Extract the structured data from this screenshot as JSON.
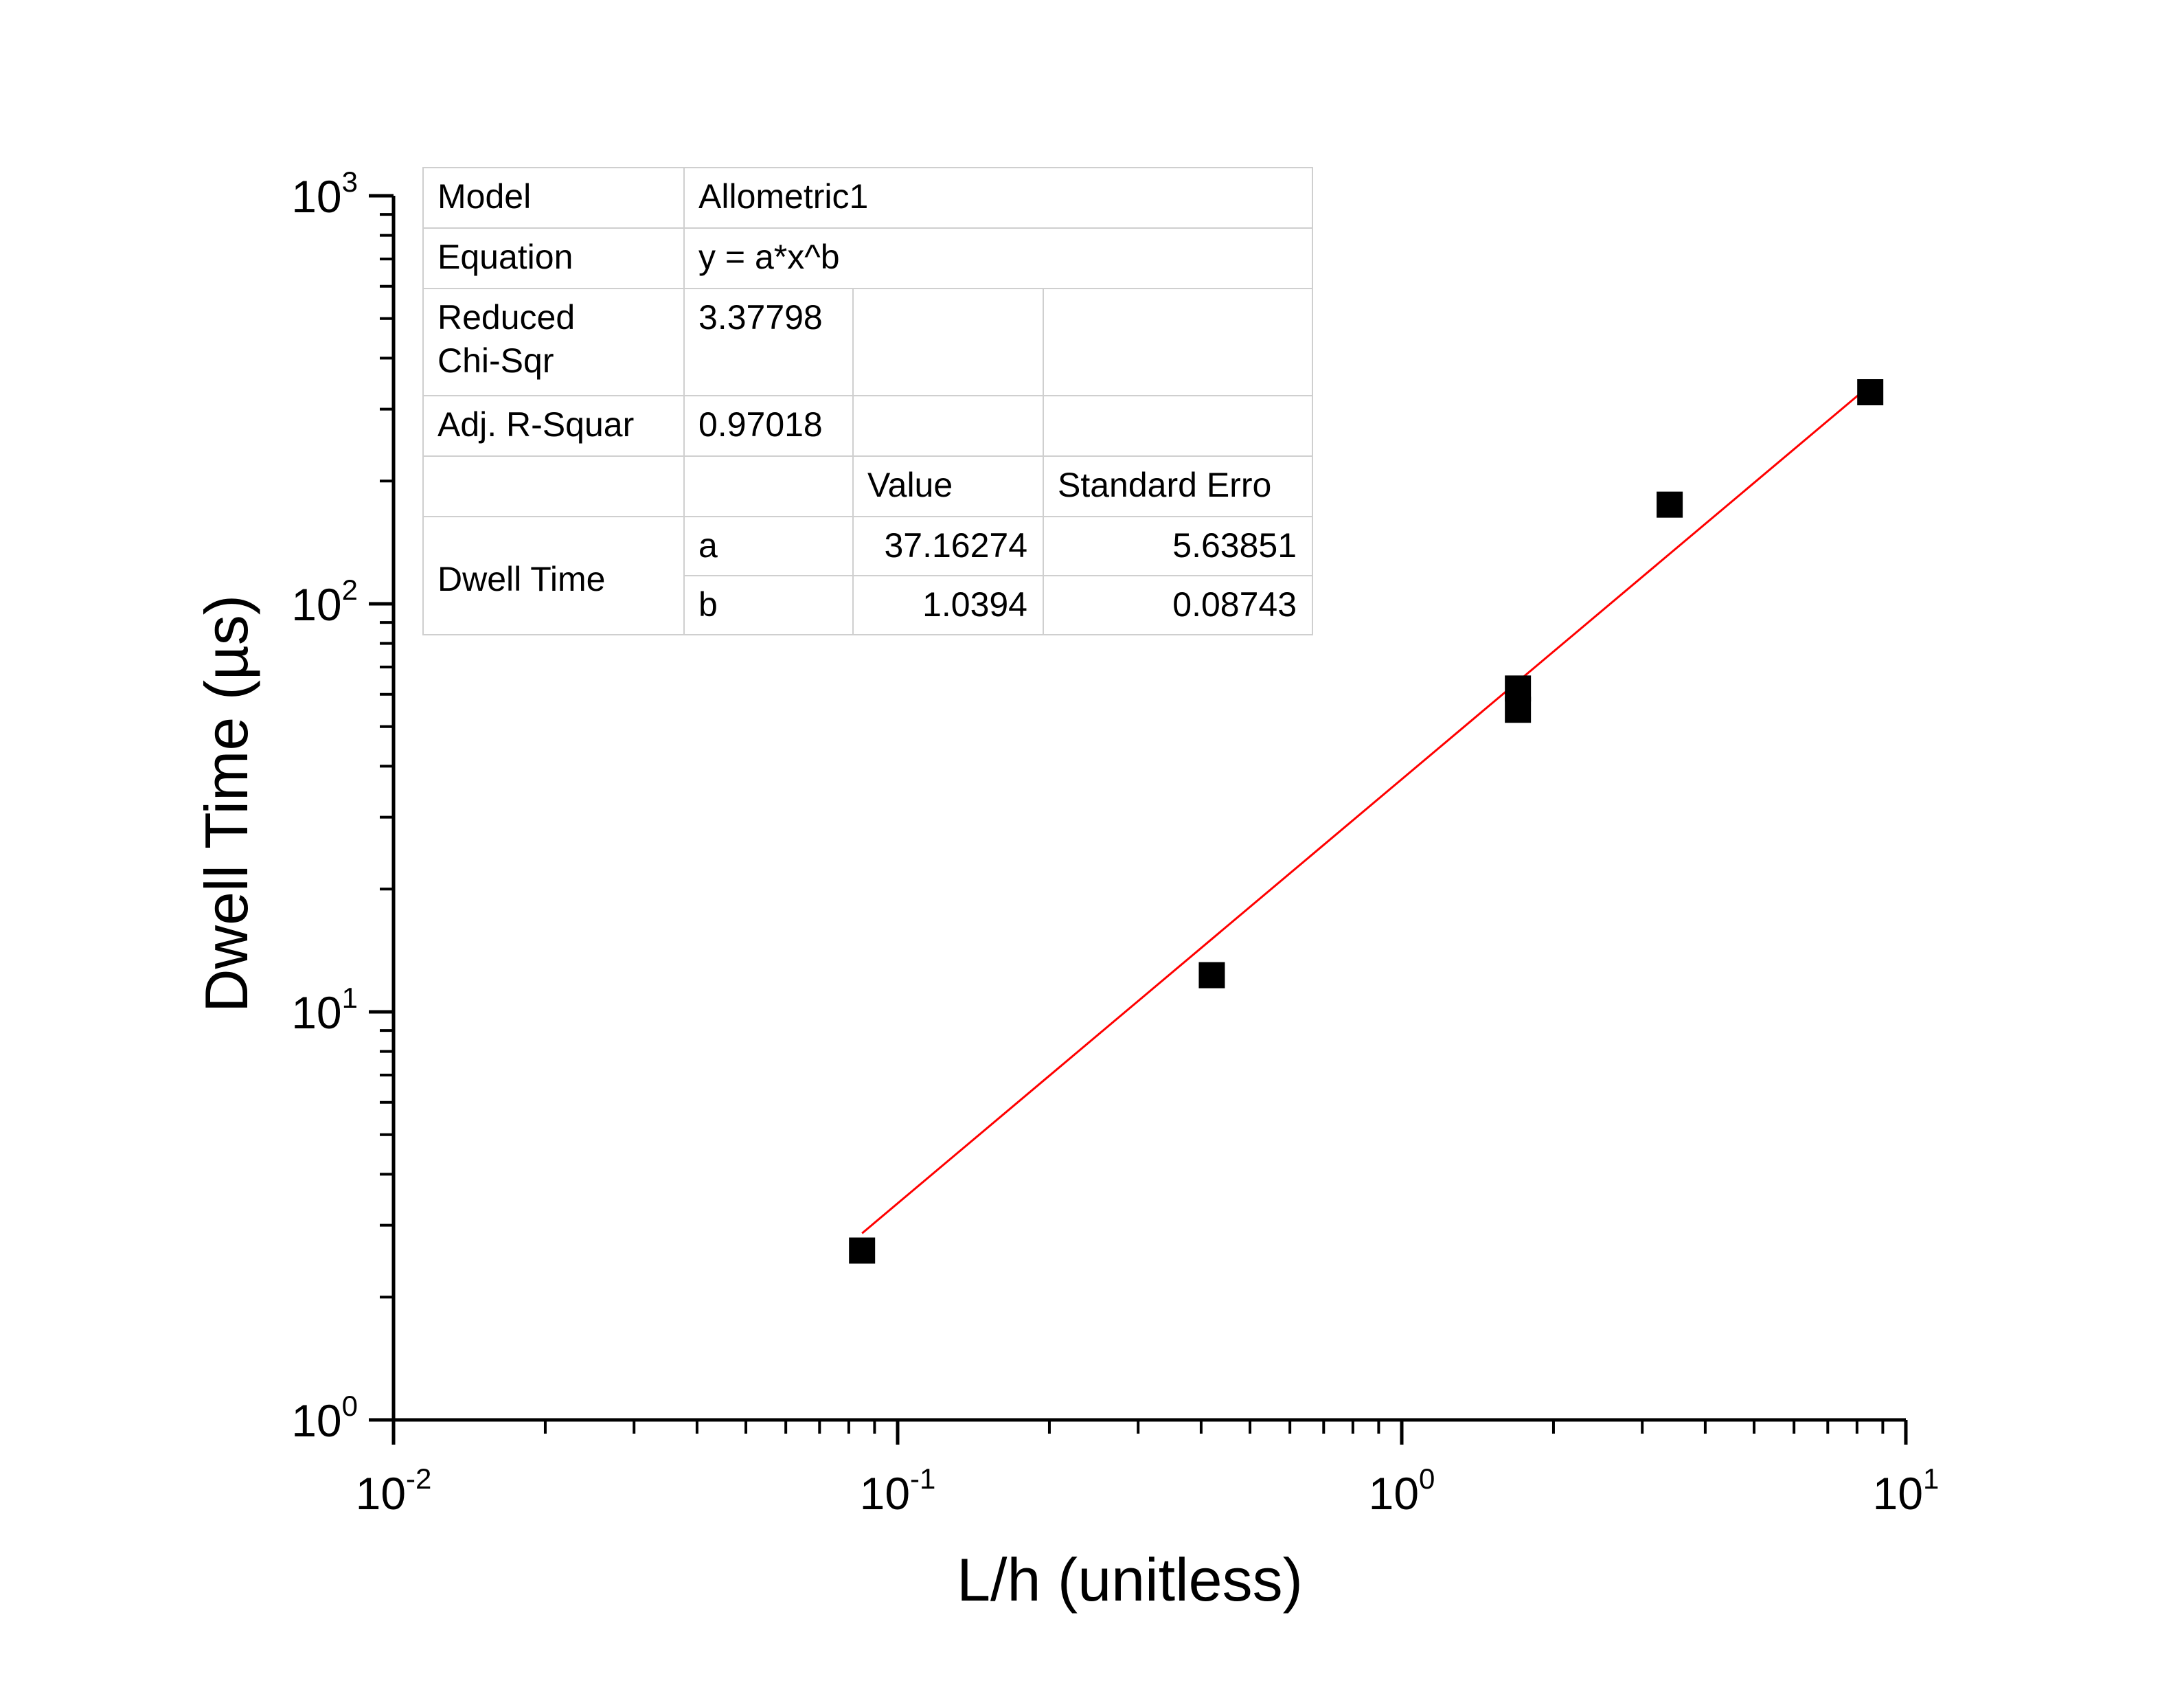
{
  "chart_data": {
    "type": "scatter",
    "xlabel": "L/h (unitless)",
    "ylabel": "Dwell Time (µs)",
    "xscale": "log",
    "yscale": "log",
    "xlim": [
      0.01,
      10
    ],
    "ylim": [
      1,
      1000
    ],
    "grid": false,
    "x_ticks": [
      {
        "base": "10",
        "exp": "-2",
        "value": 0.01
      },
      {
        "base": "10",
        "exp": "-1",
        "value": 0.1
      },
      {
        "base": "10",
        "exp": "0",
        "value": 1
      },
      {
        "base": "10",
        "exp": "1",
        "value": 10
      }
    ],
    "y_ticks": [
      {
        "base": "10",
        "exp": "0",
        "value": 1
      },
      {
        "base": "10",
        "exp": "1",
        "value": 10
      },
      {
        "base": "10",
        "exp": "2",
        "value": 100
      },
      {
        "base": "10",
        "exp": "3",
        "value": 1000
      }
    ],
    "points": [
      {
        "x": 0.085,
        "y": 2.6
      },
      {
        "x": 0.42,
        "y": 12.3
      },
      {
        "x": 1.7,
        "y": 62
      },
      {
        "x": 1.7,
        "y": 55
      },
      {
        "x": 3.4,
        "y": 175
      },
      {
        "x": 8.5,
        "y": 330
      }
    ],
    "marker_color": "#000000",
    "fit": {
      "color": "#ff0000",
      "a": 37.16274,
      "b": 1.0394,
      "x_range": [
        0.085,
        8.6
      ]
    }
  },
  "fit_table": {
    "model_label": "Model",
    "model_value": "Allometric1",
    "equation_label": "Equation",
    "equation_value": "y = a*x^b",
    "chisq_label_1": "Reduced",
    "chisq_label_2": "Chi-Sqr",
    "chisq_value": "3.37798",
    "r2_label": "Adj. R-Squar",
    "r2_value": "0.97018",
    "value_header": "Value",
    "error_header": "Standard Erro",
    "group_label": "Dwell Time",
    "param_a": "a",
    "param_a_value": "37.16274",
    "param_a_error": "5.63851",
    "param_b": "b",
    "param_b_value": "1.0394",
    "param_b_error": "0.08743"
  }
}
